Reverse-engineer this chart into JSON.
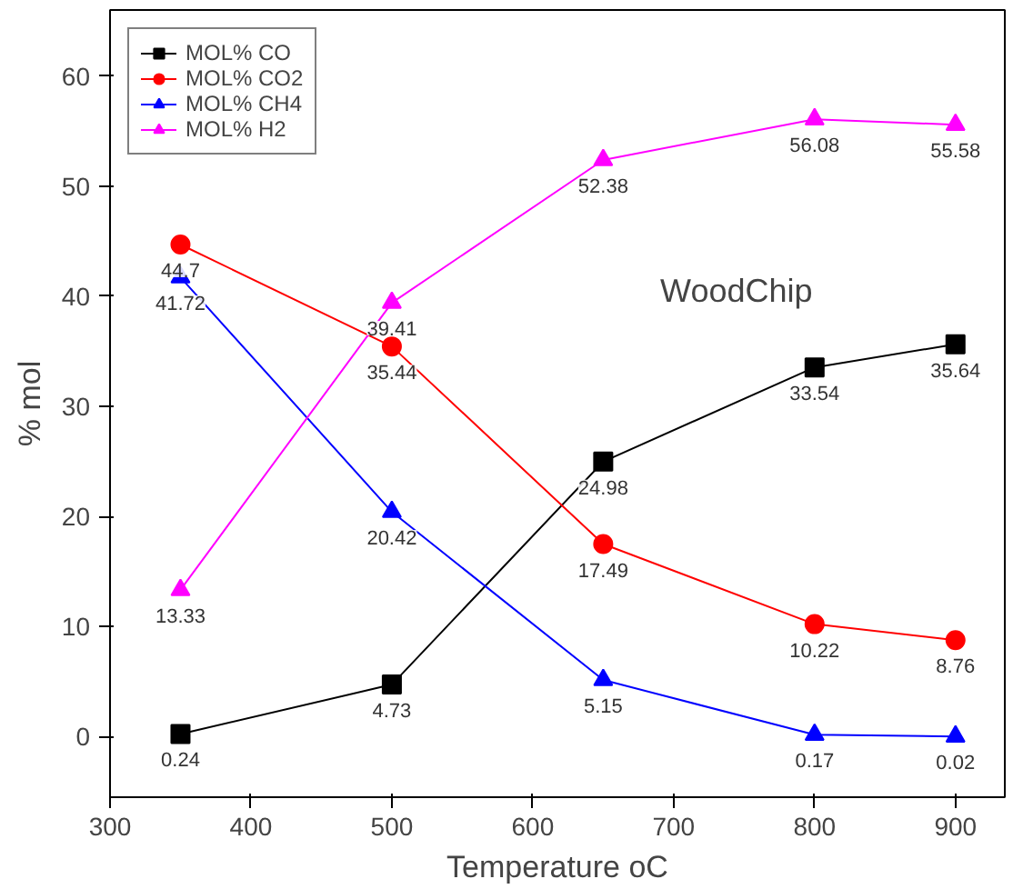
{
  "chart_data": {
    "type": "line",
    "xlabel": "Temperature oC",
    "ylabel": "% mol",
    "x": [
      350,
      500,
      650,
      800,
      900
    ],
    "series": [
      {
        "name": "MOL% CO",
        "color": "#000000",
        "marker": "square",
        "values": [
          0.24,
          4.73,
          24.98,
          33.54,
          35.64
        ]
      },
      {
        "name": "MOL% CO2",
        "color": "#ff0000",
        "marker": "circle",
        "values": [
          44.7,
          35.44,
          17.49,
          10.22,
          8.76
        ]
      },
      {
        "name": "MOL% CH4",
        "color": "#0000ff",
        "marker": "triangle",
        "values": [
          41.72,
          20.42,
          5.15,
          0.17,
          0.02
        ]
      },
      {
        "name": "MOL% H2",
        "color": "#ff00ff",
        "marker": "triangle",
        "values": [
          13.33,
          39.41,
          52.38,
          56.08,
          55.58
        ]
      }
    ],
    "annotations": [
      "WoodChip"
    ],
    "xlim": [
      300,
      935
    ],
    "ylim": [
      -5.5,
      66
    ],
    "xticks": [
      300,
      400,
      500,
      600,
      700,
      800,
      900
    ],
    "yticks": [
      0,
      10,
      20,
      30,
      40,
      50,
      60
    ],
    "data_labels": true,
    "legend": "top left",
    "grid": false,
    "line_style": "solid"
  }
}
